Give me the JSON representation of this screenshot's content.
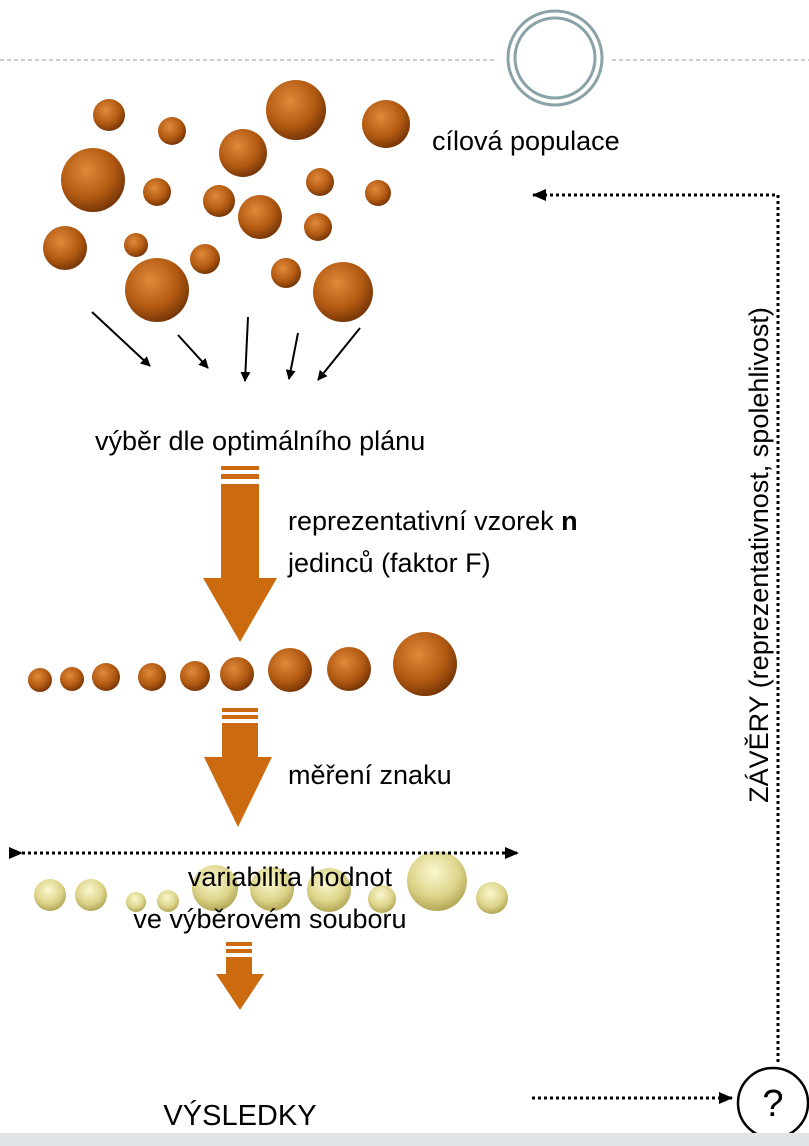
{
  "labels": {
    "population": "cílová populace",
    "selection": "výběr dle optimálního plánu",
    "sample_line1": "reprezentativní vzorek ",
    "sample_n": "n",
    "sample_line2": "jedinců (faktor F)",
    "measurement": "měření znaku",
    "variability_line1": "variabilita hodnot",
    "variability_line2": "ve výběrovém souboru",
    "results": "VÝSLEDKY",
    "question": "?",
    "conclusions": "ZÁVĚRY (reprezentativnost, spolehlivost)"
  }
}
